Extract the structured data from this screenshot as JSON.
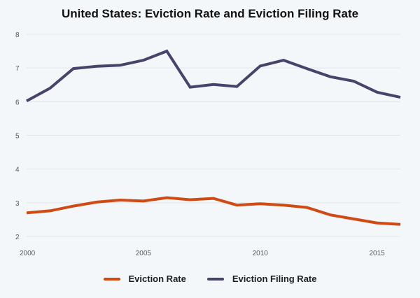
{
  "chart_data": {
    "type": "line",
    "title": "United States: Eviction Rate and Eviction Filing Rate",
    "xlabel": "",
    "ylabel": "",
    "x": [
      2000,
      2001,
      2002,
      2003,
      2004,
      2005,
      2006,
      2007,
      2008,
      2009,
      2010,
      2011,
      2012,
      2013,
      2014,
      2015,
      2016
    ],
    "xlim": [
      2000,
      2016
    ],
    "ylim": [
      1.8,
      8
    ],
    "x_ticks": [
      2000,
      2005,
      2010,
      2015
    ],
    "y_ticks": [
      2,
      3,
      4,
      5,
      6,
      7,
      8
    ],
    "grid": "horizontal",
    "legend_position": "bottom",
    "series": [
      {
        "name": "Eviction Rate",
        "color": "#d04a14",
        "values": [
          2.7,
          2.76,
          2.9,
          3.02,
          3.08,
          3.05,
          3.15,
          3.09,
          3.13,
          2.93,
          2.97,
          2.93,
          2.86,
          2.64,
          2.52,
          2.4,
          2.36
        ]
      },
      {
        "name": "Eviction Filing Rate",
        "color": "#45456b",
        "values": [
          6.02,
          6.4,
          6.98,
          7.05,
          7.08,
          7.23,
          7.5,
          6.43,
          6.51,
          6.45,
          7.06,
          7.23,
          6.98,
          6.74,
          6.61,
          6.28,
          6.13
        ]
      }
    ]
  }
}
